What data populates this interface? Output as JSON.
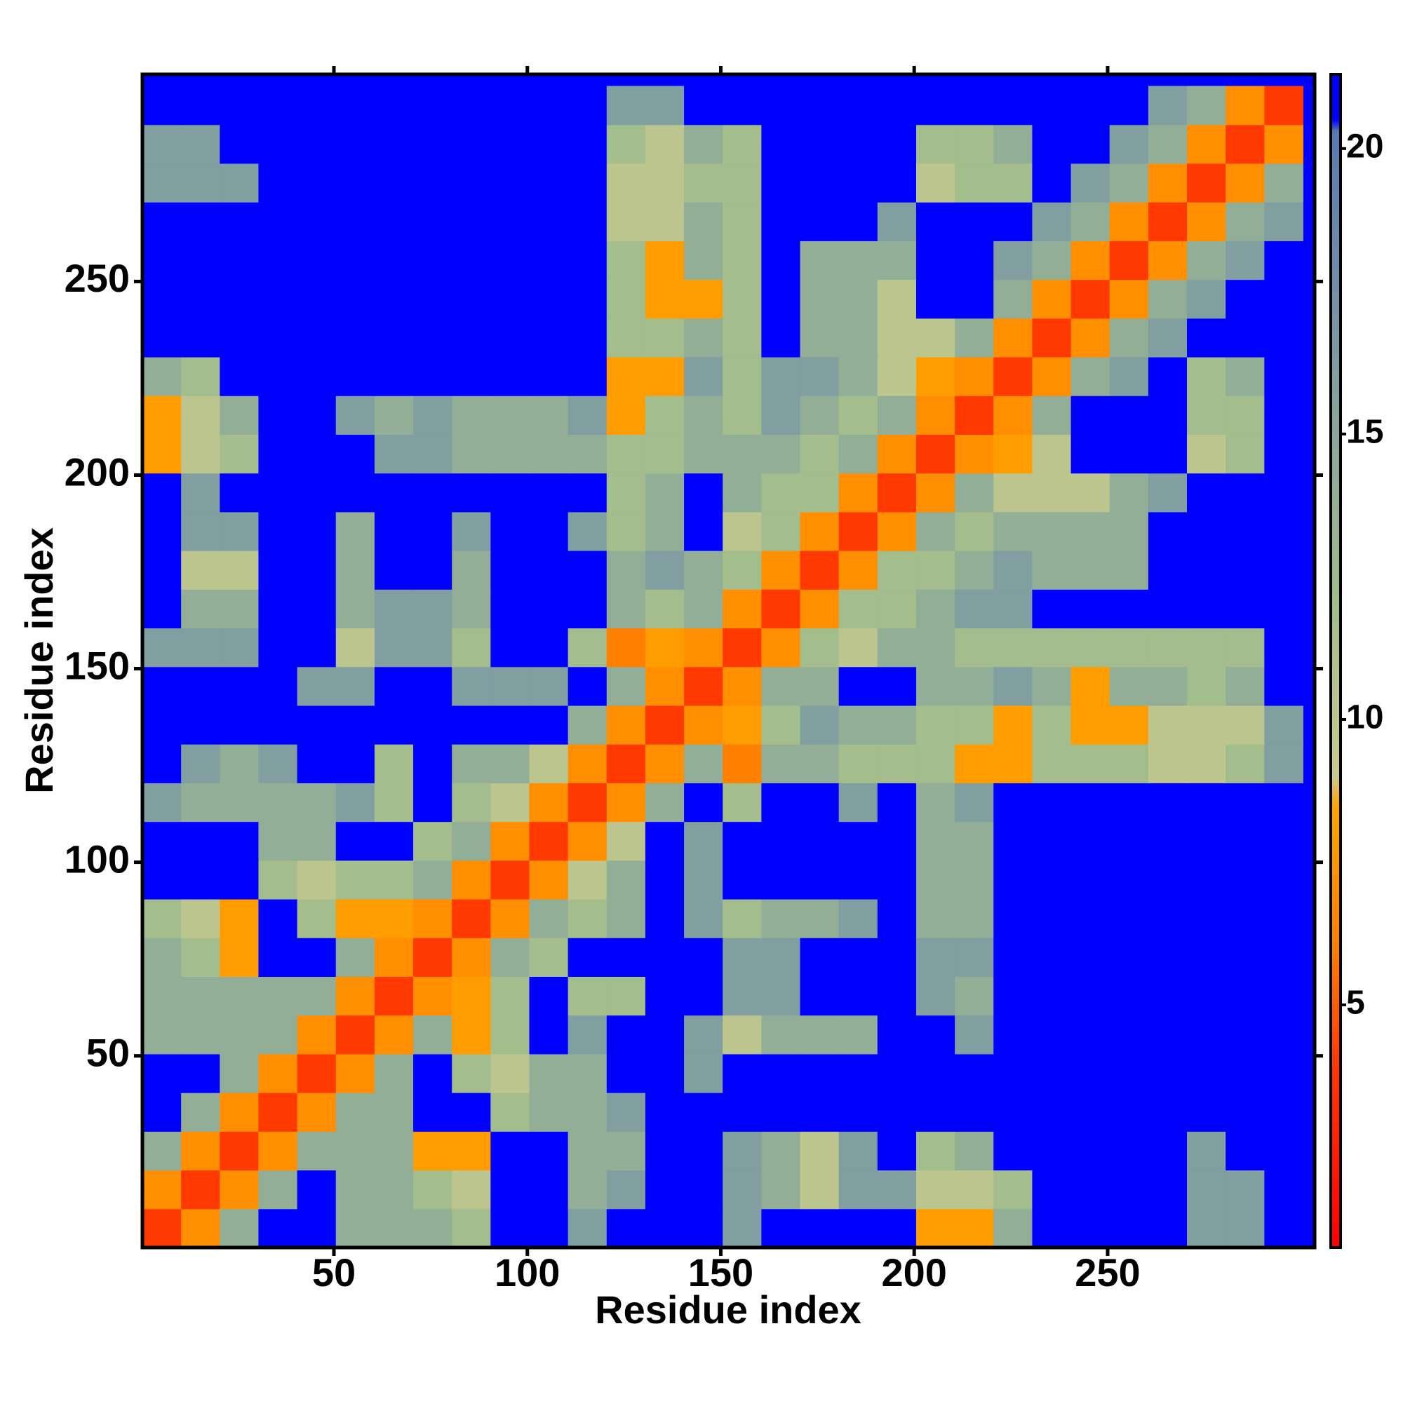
{
  "chart_data": {
    "type": "heatmap",
    "xlabel": "Residue index",
    "ylabel": "Residue index",
    "xlim": [
      0.5,
      303.5
    ],
    "ylim": [
      0.5,
      303.5
    ],
    "xticks": [
      50,
      100,
      150,
      200,
      250
    ],
    "yticks": [
      50,
      100,
      150,
      200,
      250
    ],
    "xbins": [
      0.5,
      10.5,
      20.5,
      30.5,
      40.5,
      50.5,
      60.5,
      70.5,
      80.5,
      90.5,
      100.5,
      110.5,
      120.5,
      130.5,
      140.5,
      150.5,
      160.5,
      170.5,
      180.5,
      190.5,
      200.5,
      210.5,
      220.5,
      230.5,
      240.5,
      250.5,
      260.5,
      270.5,
      280.5,
      290.5,
      300.5
    ],
    "ybins": [
      0.5,
      10.5,
      20.5,
      30.5,
      40.5,
      50.5,
      60.5,
      70.5,
      80.5,
      90.5,
      100.5,
      110.5,
      120.5,
      130.5,
      140.5,
      150.5,
      160.5,
      170.5,
      180.5,
      190.5,
      200.5,
      210.5,
      220.5,
      230.5,
      240.5,
      250.5,
      260.5,
      270.5,
      280.5,
      290.5,
      300.5
    ],
    "zlim": [
      0.75,
      21.3
    ],
    "zticks": [
      5,
      10,
      15,
      20
    ],
    "colorscale": [
      [
        0.75,
        "#ff0000"
      ],
      [
        4,
        "#ff3a00"
      ],
      [
        6,
        "#ff7f00"
      ],
      [
        8.5,
        "#ffa500"
      ],
      [
        9,
        "#c9c98f"
      ],
      [
        12,
        "#a3bd8c"
      ],
      [
        15,
        "#8aa79c"
      ],
      [
        18,
        "#6f8cab"
      ],
      [
        20.3,
        "#5a78b0"
      ],
      [
        20.5,
        "#0000ff"
      ],
      [
        21.3,
        "#0000ff"
      ]
    ],
    "z": [
      [
        4,
        7,
        14,
        21,
        21,
        14,
        14,
        14,
        12,
        21,
        21,
        16,
        21,
        21,
        21,
        16,
        21,
        21,
        21,
        21,
        8,
        8,
        14,
        21,
        21,
        21,
        21,
        16,
        16,
        21
      ],
      [
        7,
        4,
        7,
        14,
        21,
        14,
        14,
        12,
        10,
        21,
        21,
        14,
        16,
        21,
        21,
        16,
        14,
        10,
        16,
        16,
        10,
        10,
        12,
        21,
        21,
        21,
        21,
        16,
        16,
        21
      ],
      [
        14,
        7,
        4,
        7,
        14,
        14,
        14,
        8,
        8,
        21,
        21,
        14,
        14,
        21,
        21,
        16,
        14,
        10,
        16,
        21,
        12,
        14,
        21,
        21,
        21,
        21,
        21,
        16,
        21,
        21
      ],
      [
        21,
        14,
        7,
        4,
        7,
        14,
        14,
        21,
        21,
        12,
        14,
        14,
        16,
        21,
        21,
        21,
        21,
        21,
        21,
        21,
        21,
        21,
        21,
        21,
        21,
        21,
        21,
        21,
        21,
        21
      ],
      [
        21,
        21,
        14,
        7,
        4,
        7,
        14,
        21,
        12,
        10,
        14,
        14,
        21,
        21,
        16,
        21,
        21,
        21,
        21,
        21,
        21,
        21,
        21,
        21,
        21,
        21,
        21,
        21,
        21,
        21
      ],
      [
        14,
        14,
        14,
        14,
        7,
        4,
        7,
        14,
        8,
        12,
        21,
        16,
        21,
        21,
        16,
        10,
        14,
        14,
        14,
        21,
        21,
        16,
        21,
        21,
        21,
        21,
        21,
        21,
        21,
        21
      ],
      [
        14,
        14,
        14,
        14,
        14,
        7,
        4,
        7,
        8,
        12,
        21,
        12,
        12,
        21,
        21,
        16,
        16,
        21,
        21,
        21,
        16,
        14,
        21,
        21,
        21,
        21,
        21,
        21,
        21,
        21
      ],
      [
        14,
        12,
        8,
        21,
        21,
        14,
        7,
        4,
        7,
        14,
        12,
        21,
        21,
        21,
        21,
        16,
        16,
        21,
        21,
        21,
        16,
        16,
        21,
        21,
        21,
        21,
        21,
        21,
        21,
        21
      ],
      [
        12,
        10,
        8,
        21,
        12,
        8,
        8,
        7,
        4,
        7,
        14,
        12,
        14,
        21,
        16,
        12,
        14,
        14,
        16,
        21,
        14,
        14,
        21,
        21,
        21,
        21,
        21,
        21,
        21,
        21
      ],
      [
        21,
        21,
        21,
        12,
        10,
        12,
        12,
        14,
        7,
        4,
        7,
        10,
        14,
        21,
        16,
        21,
        21,
        21,
        21,
        21,
        14,
        14,
        21,
        21,
        21,
        21,
        21,
        21,
        21,
        21
      ],
      [
        21,
        21,
        21,
        14,
        14,
        21,
        21,
        12,
        14,
        7,
        4,
        7,
        10,
        21,
        16,
        21,
        21,
        21,
        21,
        21,
        14,
        14,
        21,
        21,
        21,
        21,
        21,
        21,
        21,
        21
      ],
      [
        16,
        14,
        14,
        14,
        14,
        16,
        12,
        21,
        12,
        10,
        7,
        4,
        7,
        14,
        21,
        12,
        21,
        21,
        16,
        21,
        14,
        16,
        21,
        21,
        21,
        21,
        21,
        21,
        21,
        21
      ],
      [
        21,
        16,
        14,
        16,
        21,
        21,
        12,
        21,
        14,
        14,
        10,
        7,
        4,
        7,
        14,
        6,
        14,
        14,
        12,
        12,
        12,
        8,
        8,
        12,
        12,
        12,
        10,
        10,
        12,
        16
      ],
      [
        21,
        21,
        21,
        21,
        21,
        21,
        21,
        21,
        21,
        21,
        21,
        14,
        7,
        4,
        7,
        8,
        12,
        16,
        14,
        14,
        12,
        12,
        8,
        12,
        8,
        8,
        10,
        10,
        10,
        16
      ],
      [
        21,
        21,
        21,
        21,
        16,
        16,
        21,
        21,
        16,
        16,
        16,
        21,
        14,
        7,
        4,
        7,
        14,
        14,
        21,
        21,
        14,
        14,
        16,
        14,
        8,
        14,
        14,
        12,
        14,
        21
      ],
      [
        16,
        16,
        16,
        21,
        21,
        10,
        16,
        16,
        12,
        21,
        21,
        12,
        6,
        8,
        7,
        4,
        7,
        12,
        10,
        14,
        14,
        12,
        12,
        12,
        12,
        12,
        12,
        12,
        12,
        21
      ],
      [
        21,
        14,
        14,
        21,
        21,
        14,
        16,
        16,
        14,
        21,
        21,
        21,
        14,
        12,
        14,
        7,
        4,
        7,
        12,
        12,
        14,
        16,
        16,
        21,
        21,
        21,
        21,
        21,
        21,
        21
      ],
      [
        21,
        10,
        10,
        21,
        21,
        14,
        21,
        21,
        14,
        21,
        21,
        21,
        14,
        16,
        14,
        12,
        7,
        4,
        7,
        12,
        12,
        14,
        16,
        14,
        14,
        14,
        21,
        21,
        21,
        21
      ],
      [
        21,
        16,
        16,
        21,
        21,
        14,
        21,
        21,
        16,
        21,
        21,
        16,
        12,
        14,
        21,
        10,
        12,
        7,
        4,
        7,
        14,
        12,
        14,
        14,
        14,
        14,
        21,
        21,
        21,
        21
      ],
      [
        21,
        16,
        21,
        21,
        21,
        21,
        21,
        21,
        21,
        21,
        21,
        21,
        12,
        14,
        21,
        14,
        12,
        12,
        7,
        4,
        7,
        14,
        10,
        10,
        10,
        14,
        16,
        21,
        21,
        21
      ],
      [
        8,
        10,
        12,
        21,
        21,
        21,
        16,
        16,
        14,
        14,
        14,
        14,
        12,
        12,
        14,
        14,
        14,
        12,
        14,
        7,
        4,
        7,
        8,
        10,
        21,
        21,
        21,
        10,
        12,
        21
      ],
      [
        8,
        10,
        14,
        21,
        21,
        16,
        14,
        16,
        14,
        14,
        14,
        16,
        8,
        12,
        14,
        12,
        16,
        14,
        12,
        14,
        7,
        4,
        7,
        14,
        21,
        21,
        21,
        12,
        12,
        21
      ],
      [
        14,
        12,
        21,
        21,
        21,
        21,
        21,
        21,
        21,
        21,
        21,
        21,
        8,
        8,
        16,
        12,
        16,
        16,
        14,
        10,
        8,
        7,
        4,
        7,
        14,
        16,
        21,
        12,
        14,
        21
      ],
      [
        21,
        21,
        21,
        21,
        21,
        21,
        21,
        21,
        21,
        21,
        21,
        21,
        12,
        12,
        14,
        12,
        21,
        14,
        14,
        10,
        10,
        14,
        7,
        4,
        7,
        14,
        16,
        21,
        21,
        21
      ],
      [
        21,
        21,
        21,
        21,
        21,
        21,
        21,
        21,
        21,
        21,
        21,
        21,
        12,
        8,
        8,
        12,
        21,
        14,
        14,
        10,
        21,
        21,
        14,
        7,
        4,
        7,
        14,
        16,
        21,
        21
      ],
      [
        21,
        21,
        21,
        21,
        21,
        21,
        21,
        21,
        21,
        21,
        21,
        21,
        12,
        8,
        14,
        12,
        21,
        14,
        14,
        14,
        21,
        21,
        16,
        14,
        7,
        4,
        7,
        14,
        16,
        21
      ],
      [
        21,
        21,
        21,
        21,
        21,
        21,
        21,
        21,
        21,
        21,
        21,
        21,
        10,
        10,
        14,
        12,
        21,
        21,
        21,
        16,
        21,
        21,
        21,
        16,
        14,
        7,
        4,
        7,
        14,
        16
      ],
      [
        16,
        16,
        16,
        21,
        21,
        21,
        21,
        21,
        21,
        21,
        21,
        21,
        10,
        10,
        12,
        12,
        21,
        21,
        21,
        21,
        10,
        12,
        12,
        21,
        16,
        14,
        7,
        4,
        7,
        14
      ],
      [
        16,
        16,
        21,
        21,
        21,
        21,
        21,
        21,
        21,
        21,
        21,
        21,
        12,
        10,
        14,
        12,
        21,
        21,
        21,
        21,
        12,
        12,
        14,
        21,
        21,
        16,
        14,
        7,
        4,
        7
      ],
      [
        21,
        21,
        21,
        21,
        21,
        21,
        21,
        21,
        21,
        21,
        21,
        21,
        16,
        16,
        21,
        21,
        21,
        21,
        21,
        21,
        21,
        21,
        21,
        21,
        21,
        21,
        16,
        14,
        7,
        4
      ]
    ]
  }
}
